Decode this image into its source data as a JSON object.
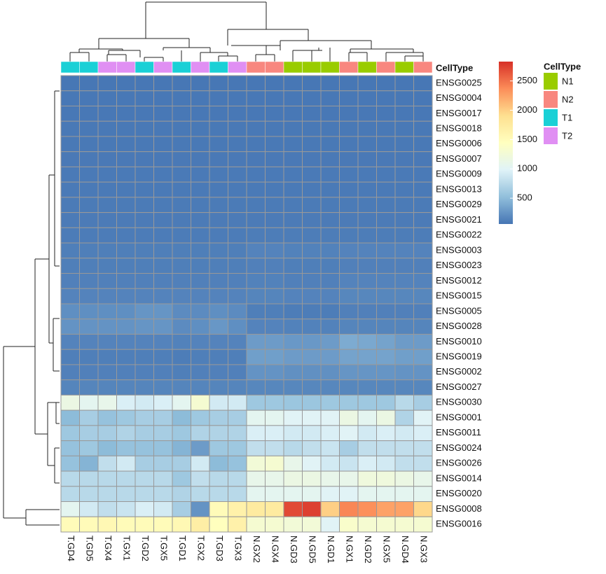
{
  "chart_data": {
    "type": "heatmap",
    "columns": [
      "T.GD4",
      "T.GD5",
      "T.GX4",
      "T.GX1",
      "T.GD2",
      "T.GX5",
      "T.GD1",
      "T.GX2",
      "T.GD3",
      "T.GX3",
      "N.GX2",
      "N.GX4",
      "N.GD3",
      "N.GD5",
      "N.GD1",
      "N.GX1",
      "N.GD2",
      "N.GX5",
      "N.GD4",
      "N.GX3"
    ],
    "rows": [
      "ENSG0025",
      "ENSG0004",
      "ENSG0017",
      "ENSG0018",
      "ENSG0006",
      "ENSG0007",
      "ENSG0009",
      "ENSG0013",
      "ENSG0029",
      "ENSG0021",
      "ENSG0022",
      "ENSG0003",
      "ENSG0023",
      "ENSG0012",
      "ENSG0015",
      "ENSG0005",
      "ENSG0028",
      "ENSG0010",
      "ENSG0019",
      "ENSG0002",
      "ENSG0027",
      "ENSG0030",
      "ENSG0001",
      "ENSG0011",
      "ENSG0024",
      "ENSG0026",
      "ENSG0014",
      "ENSG0020",
      "ENSG0008",
      "ENSG0016"
    ],
    "values": [
      [
        75,
        75,
        75,
        75,
        75,
        75,
        75,
        75,
        75,
        75,
        75,
        75,
        75,
        75,
        75,
        75,
        75,
        75,
        75,
        75
      ],
      [
        78,
        78,
        78,
        78,
        78,
        78,
        78,
        78,
        78,
        78,
        78,
        78,
        78,
        78,
        78,
        78,
        78,
        78,
        78,
        78
      ],
      [
        80,
        80,
        80,
        80,
        80,
        80,
        80,
        80,
        80,
        80,
        80,
        80,
        80,
        80,
        80,
        80,
        80,
        80,
        80,
        80
      ],
      [
        82,
        82,
        82,
        82,
        82,
        82,
        82,
        82,
        82,
        82,
        82,
        82,
        82,
        82,
        82,
        82,
        82,
        82,
        82,
        82
      ],
      [
        85,
        85,
        85,
        85,
        85,
        85,
        85,
        85,
        85,
        85,
        85,
        85,
        85,
        85,
        85,
        85,
        85,
        85,
        85,
        85
      ],
      [
        88,
        88,
        88,
        88,
        88,
        88,
        88,
        88,
        88,
        88,
        88,
        88,
        88,
        88,
        88,
        88,
        88,
        88,
        88,
        88
      ],
      [
        90,
        90,
        90,
        90,
        90,
        90,
        90,
        90,
        90,
        90,
        90,
        90,
        90,
        90,
        90,
        90,
        90,
        90,
        90,
        90
      ],
      [
        92,
        92,
        92,
        92,
        92,
        92,
        92,
        92,
        92,
        92,
        92,
        92,
        92,
        92,
        92,
        92,
        92,
        92,
        92,
        92
      ],
      [
        95,
        95,
        95,
        95,
        95,
        95,
        95,
        95,
        95,
        95,
        95,
        95,
        95,
        95,
        95,
        95,
        95,
        95,
        95,
        95
      ],
      [
        100,
        100,
        100,
        100,
        100,
        100,
        100,
        100,
        100,
        100,
        100,
        100,
        100,
        100,
        100,
        100,
        100,
        100,
        100,
        100
      ],
      [
        105,
        105,
        105,
        105,
        105,
        105,
        105,
        105,
        105,
        105,
        110,
        110,
        110,
        110,
        110,
        110,
        110,
        110,
        110,
        110
      ],
      [
        120,
        120,
        120,
        120,
        120,
        120,
        120,
        120,
        120,
        120,
        150,
        150,
        140,
        140,
        140,
        150,
        150,
        150,
        150,
        150
      ],
      [
        120,
        120,
        120,
        120,
        120,
        120,
        120,
        120,
        120,
        120,
        130,
        130,
        120,
        120,
        120,
        130,
        130,
        130,
        130,
        130
      ],
      [
        130,
        130,
        130,
        130,
        130,
        130,
        130,
        130,
        130,
        130,
        140,
        140,
        130,
        130,
        130,
        150,
        150,
        150,
        150,
        150
      ],
      [
        150,
        150,
        150,
        150,
        150,
        150,
        150,
        150,
        150,
        150,
        160,
        160,
        150,
        150,
        150,
        170,
        170,
        170,
        170,
        170
      ],
      [
        220,
        220,
        220,
        220,
        260,
        260,
        200,
        200,
        220,
        200,
        120,
        120,
        110,
        110,
        110,
        130,
        130,
        130,
        130,
        130
      ],
      [
        250,
        250,
        250,
        250,
        260,
        260,
        200,
        220,
        270,
        220,
        150,
        150,
        140,
        140,
        140,
        160,
        160,
        160,
        160,
        160
      ],
      [
        150,
        150,
        150,
        150,
        150,
        150,
        140,
        150,
        150,
        150,
        300,
        300,
        280,
        280,
        300,
        400,
        380,
        350,
        300,
        300
      ],
      [
        120,
        120,
        120,
        120,
        120,
        120,
        110,
        120,
        120,
        120,
        320,
        320,
        300,
        300,
        300,
        350,
        350,
        350,
        320,
        320
      ],
      [
        130,
        130,
        130,
        130,
        130,
        130,
        120,
        130,
        130,
        130,
        250,
        250,
        230,
        230,
        230,
        260,
        260,
        260,
        250,
        250
      ],
      [
        160,
        160,
        160,
        160,
        160,
        160,
        160,
        160,
        160,
        160,
        170,
        170,
        170,
        170,
        170,
        170,
        170,
        170,
        170,
        170
      ],
      [
        1150,
        1050,
        1100,
        950,
        900,
        950,
        1050,
        1300,
        900,
        900,
        600,
        600,
        580,
        580,
        600,
        600,
        600,
        600,
        750,
        650
      ],
      [
        500,
        650,
        550,
        600,
        650,
        650,
        500,
        600,
        650,
        650,
        1050,
        1050,
        1000,
        1000,
        1000,
        1150,
        1050,
        1150,
        700,
        1000
      ],
      [
        600,
        650,
        650,
        700,
        650,
        650,
        600,
        700,
        700,
        700,
        950,
        950,
        900,
        900,
        950,
        1000,
        900,
        950,
        900,
        950
      ],
      [
        550,
        600,
        500,
        550,
        550,
        550,
        450,
        300,
        600,
        600,
        800,
        800,
        750,
        800,
        850,
        650,
        800,
        800,
        800,
        800
      ],
      [
        550,
        450,
        800,
        900,
        650,
        650,
        650,
        900,
        500,
        550,
        1250,
        1300,
        1100,
        1000,
        900,
        850,
        950,
        900,
        800,
        800
      ],
      [
        750,
        750,
        750,
        750,
        750,
        750,
        600,
        800,
        750,
        750,
        1100,
        1100,
        1150,
        1150,
        1100,
        1100,
        1200,
        1200,
        1150,
        1100
      ],
      [
        750,
        750,
        750,
        750,
        750,
        750,
        700,
        750,
        750,
        750,
        1050,
        1050,
        1050,
        1050,
        1000,
        1000,
        1050,
        1050,
        1050,
        1050
      ],
      [
        1050,
        900,
        800,
        850,
        950,
        900,
        650,
        250,
        1500,
        1650,
        1750,
        1750,
        2700,
        2750,
        2000,
        2400,
        2350,
        2250,
        2250,
        1950
      ],
      [
        1500,
        1500,
        1550,
        1500,
        1500,
        1500,
        1550,
        1700,
        1450,
        1650,
        1300,
        1300,
        1250,
        1250,
        1000,
        1350,
        1300,
        1300,
        1300,
        1300
      ]
    ],
    "column_groups": [
      "T1",
      "T1",
      "T2",
      "T2",
      "T1",
      "T2",
      "T1",
      "T2",
      "T1",
      "T2",
      "N2",
      "N2",
      "N1",
      "N1",
      "N1",
      "N2",
      "N1",
      "N2",
      "N1",
      "N2"
    ],
    "annotation_title": "CellType",
    "legend": {
      "title": "CellType",
      "items": [
        {
          "name": "N1",
          "color": "#99cc00"
        },
        {
          "name": "N2",
          "color": "#f8877f"
        },
        {
          "name": "T1",
          "color": "#1ad0d6"
        },
        {
          "name": "T2",
          "color": "#e08ff3"
        }
      ]
    },
    "colormap": [
      "#4575b4",
      "#91bfdb",
      "#e0f3f8",
      "#ffffbf",
      "#fee090",
      "#fc8d59",
      "#d73027"
    ],
    "clim": [
      60,
      2830
    ],
    "colorbar_ticks": [
      500,
      1000,
      1500,
      2000,
      2500
    ]
  }
}
